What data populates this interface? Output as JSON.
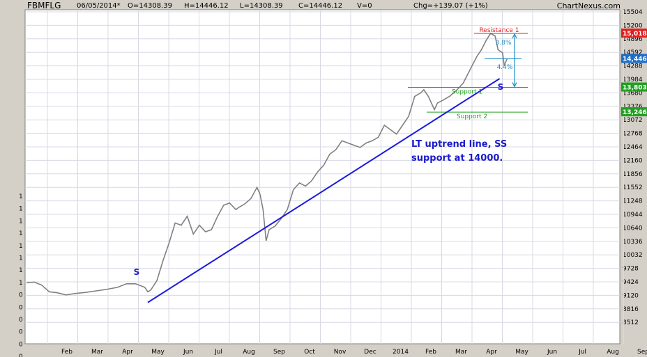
{
  "header": {
    "ticker": "FBMFLG",
    "date": "06/05/2014*",
    "open": "O=14308.39",
    "high": "H=14446.12",
    "low": "L=14308.39",
    "close": "C=14446.12",
    "volume": "V=0",
    "change": "Chg=+139.07 (+1%)",
    "brand": "ChartNexus.com"
  },
  "colors": {
    "background": "#d4d0c8",
    "plot_area": "#ffffff",
    "grid": "#d8d8e6",
    "price_bars": "#808080",
    "trendline": "#1a1ae0",
    "resistance": "#e02020",
    "support": "#20a020",
    "measure": "#1e90c8",
    "annotation_text": "#1a1acc"
  },
  "chart_data": {
    "type": "line",
    "title": "",
    "xlabel": "",
    "ylabel": "",
    "x_ticks": [
      "Feb",
      "Mar",
      "Apr",
      "May",
      "Jun",
      "Jul",
      "Aug",
      "Sep",
      "Oct",
      "Nov",
      "Dec",
      "2014",
      "Feb",
      "Mar",
      "Apr",
      "May",
      "Jun",
      "Jul",
      "Aug",
      "Sep"
    ],
    "y_ticks": [
      "15504",
      "15200",
      "14896",
      "14592",
      "14288",
      "13984",
      "13680",
      "13376",
      "13072",
      "12768",
      "12464",
      "12160",
      "11856",
      "11552",
      "11248",
      "10944",
      "10640",
      "10336",
      "10032",
      "9728",
      "9424",
      "9120",
      "8816",
      "8512"
    ],
    "left_axis_labels": [
      "1",
      "1",
      "1",
      "1",
      "1",
      "1",
      "1",
      "1",
      "0",
      "0",
      "0",
      "0",
      "0",
      "0"
    ],
    "ylim": [
      8300,
      15600
    ],
    "grid": true,
    "series": [
      {
        "values": [
          [
            0,
            9400
          ],
          [
            0.25,
            9420
          ],
          [
            0.5,
            9350
          ],
          [
            0.75,
            9200
          ],
          [
            1.0,
            9180
          ],
          [
            1.3,
            9130
          ],
          [
            1.6,
            9160
          ],
          [
            2.0,
            9190
          ],
          [
            2.3,
            9220
          ],
          [
            2.6,
            9250
          ],
          [
            3.0,
            9300
          ],
          [
            3.3,
            9380
          ],
          [
            3.6,
            9380
          ],
          [
            3.9,
            9300
          ],
          [
            4.0,
            9200
          ],
          [
            4.1,
            9240
          ],
          [
            4.3,
            9450
          ],
          [
            4.5,
            9900
          ],
          [
            4.7,
            10300
          ],
          [
            4.9,
            10750
          ],
          [
            5.1,
            10700
          ],
          [
            5.3,
            10900
          ],
          [
            5.5,
            10500
          ],
          [
            5.7,
            10700
          ],
          [
            5.9,
            10550
          ],
          [
            6.1,
            10600
          ],
          [
            6.3,
            10900
          ],
          [
            6.5,
            11150
          ],
          [
            6.7,
            11200
          ],
          [
            6.9,
            11050
          ],
          [
            7.0,
            11100
          ],
          [
            7.2,
            11180
          ],
          [
            7.4,
            11300
          ],
          [
            7.6,
            11550
          ],
          [
            7.7,
            11400
          ],
          [
            7.8,
            11050
          ],
          [
            7.9,
            10350
          ],
          [
            8.0,
            10600
          ],
          [
            8.2,
            10680
          ],
          [
            8.4,
            10850
          ],
          [
            8.6,
            11050
          ],
          [
            8.8,
            11500
          ],
          [
            9.0,
            11650
          ],
          [
            9.2,
            11580
          ],
          [
            9.4,
            11700
          ],
          [
            9.6,
            11900
          ],
          [
            9.8,
            12050
          ],
          [
            10.0,
            12300
          ],
          [
            10.2,
            12400
          ],
          [
            10.4,
            12600
          ],
          [
            10.6,
            12550
          ],
          [
            10.8,
            12500
          ],
          [
            11.0,
            12450
          ],
          [
            11.2,
            12550
          ],
          [
            11.4,
            12600
          ],
          [
            11.6,
            12680
          ],
          [
            11.8,
            12950
          ],
          [
            12.0,
            12850
          ],
          [
            12.2,
            12750
          ],
          [
            12.4,
            12950
          ],
          [
            12.6,
            13150
          ],
          [
            12.8,
            13600
          ],
          [
            13.0,
            13680
          ],
          [
            13.1,
            13750
          ],
          [
            13.25,
            13600
          ],
          [
            13.45,
            13300
          ],
          [
            13.55,
            13450
          ],
          [
            13.75,
            13520
          ],
          [
            13.95,
            13600
          ],
          [
            14.2,
            13750
          ],
          [
            14.4,
            13900
          ],
          [
            14.55,
            14100
          ],
          [
            14.7,
            14300
          ],
          [
            14.85,
            14500
          ],
          [
            15.0,
            14650
          ],
          [
            15.15,
            14850
          ],
          [
            15.3,
            15018
          ],
          [
            15.45,
            14960
          ],
          [
            15.55,
            14650
          ],
          [
            15.7,
            14580
          ],
          [
            15.75,
            14300
          ],
          [
            15.85,
            14446
          ]
        ]
      }
    ]
  },
  "levels": {
    "resistance_1": {
      "label": "Resistance 1",
      "value": 15018,
      "price_tag": "15,018"
    },
    "current": {
      "value": 14446,
      "price_tag": "14,446"
    },
    "support_1": {
      "label": "Support 1",
      "value": 13803,
      "price_tag": "13,803"
    },
    "support_2": {
      "label": "Support 2",
      "value": 13246,
      "price_tag": "13,246"
    }
  },
  "annotations": {
    "pct_up": "3.8%",
    "pct_down": "4.4%",
    "trend_start_label": "S",
    "trend_end_label": "S",
    "note_line1": "LT uptrend line, SS",
    "note_line2": "support at 14000.",
    "trendline": {
      "start": [
        4.0,
        8960
      ],
      "end": [
        15.6,
        14000
      ]
    }
  }
}
